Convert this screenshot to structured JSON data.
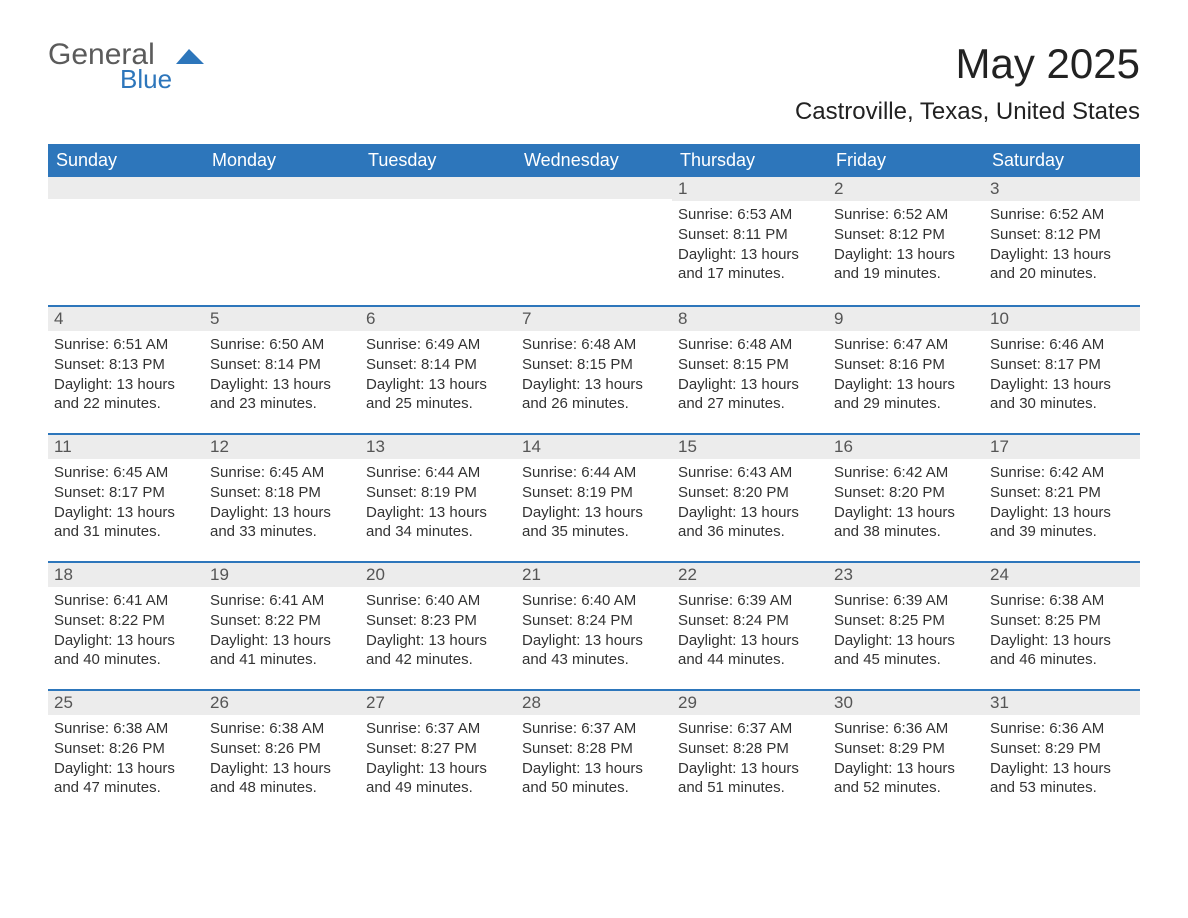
{
  "logo": {
    "general": "General",
    "blue": "Blue",
    "accent_color": "#2d76bb"
  },
  "header": {
    "title": "May 2025",
    "location": "Castroville, Texas, United States"
  },
  "colors": {
    "header_bg": "#2d76bb",
    "header_text": "#ffffff",
    "daynum_bg": "#ececec",
    "text": "#333333",
    "title_text": "#222222",
    "row_border": "#2d76bb"
  },
  "weekdays": [
    "Sunday",
    "Monday",
    "Tuesday",
    "Wednesday",
    "Thursday",
    "Friday",
    "Saturday"
  ],
  "weeks": [
    [
      {
        "n": "",
        "sunrise": "",
        "sunset": "",
        "daylight": ""
      },
      {
        "n": "",
        "sunrise": "",
        "sunset": "",
        "daylight": ""
      },
      {
        "n": "",
        "sunrise": "",
        "sunset": "",
        "daylight": ""
      },
      {
        "n": "",
        "sunrise": "",
        "sunset": "",
        "daylight": ""
      },
      {
        "n": "1",
        "sunrise": "Sunrise: 6:53 AM",
        "sunset": "Sunset: 8:11 PM",
        "daylight": "Daylight: 13 hours and 17 minutes."
      },
      {
        "n": "2",
        "sunrise": "Sunrise: 6:52 AM",
        "sunset": "Sunset: 8:12 PM",
        "daylight": "Daylight: 13 hours and 19 minutes."
      },
      {
        "n": "3",
        "sunrise": "Sunrise: 6:52 AM",
        "sunset": "Sunset: 8:12 PM",
        "daylight": "Daylight: 13 hours and 20 minutes."
      }
    ],
    [
      {
        "n": "4",
        "sunrise": "Sunrise: 6:51 AM",
        "sunset": "Sunset: 8:13 PM",
        "daylight": "Daylight: 13 hours and 22 minutes."
      },
      {
        "n": "5",
        "sunrise": "Sunrise: 6:50 AM",
        "sunset": "Sunset: 8:14 PM",
        "daylight": "Daylight: 13 hours and 23 minutes."
      },
      {
        "n": "6",
        "sunrise": "Sunrise: 6:49 AM",
        "sunset": "Sunset: 8:14 PM",
        "daylight": "Daylight: 13 hours and 25 minutes."
      },
      {
        "n": "7",
        "sunrise": "Sunrise: 6:48 AM",
        "sunset": "Sunset: 8:15 PM",
        "daylight": "Daylight: 13 hours and 26 minutes."
      },
      {
        "n": "8",
        "sunrise": "Sunrise: 6:48 AM",
        "sunset": "Sunset: 8:15 PM",
        "daylight": "Daylight: 13 hours and 27 minutes."
      },
      {
        "n": "9",
        "sunrise": "Sunrise: 6:47 AM",
        "sunset": "Sunset: 8:16 PM",
        "daylight": "Daylight: 13 hours and 29 minutes."
      },
      {
        "n": "10",
        "sunrise": "Sunrise: 6:46 AM",
        "sunset": "Sunset: 8:17 PM",
        "daylight": "Daylight: 13 hours and 30 minutes."
      }
    ],
    [
      {
        "n": "11",
        "sunrise": "Sunrise: 6:45 AM",
        "sunset": "Sunset: 8:17 PM",
        "daylight": "Daylight: 13 hours and 31 minutes."
      },
      {
        "n": "12",
        "sunrise": "Sunrise: 6:45 AM",
        "sunset": "Sunset: 8:18 PM",
        "daylight": "Daylight: 13 hours and 33 minutes."
      },
      {
        "n": "13",
        "sunrise": "Sunrise: 6:44 AM",
        "sunset": "Sunset: 8:19 PM",
        "daylight": "Daylight: 13 hours and 34 minutes."
      },
      {
        "n": "14",
        "sunrise": "Sunrise: 6:44 AM",
        "sunset": "Sunset: 8:19 PM",
        "daylight": "Daylight: 13 hours and 35 minutes."
      },
      {
        "n": "15",
        "sunrise": "Sunrise: 6:43 AM",
        "sunset": "Sunset: 8:20 PM",
        "daylight": "Daylight: 13 hours and 36 minutes."
      },
      {
        "n": "16",
        "sunrise": "Sunrise: 6:42 AM",
        "sunset": "Sunset: 8:20 PM",
        "daylight": "Daylight: 13 hours and 38 minutes."
      },
      {
        "n": "17",
        "sunrise": "Sunrise: 6:42 AM",
        "sunset": "Sunset: 8:21 PM",
        "daylight": "Daylight: 13 hours and 39 minutes."
      }
    ],
    [
      {
        "n": "18",
        "sunrise": "Sunrise: 6:41 AM",
        "sunset": "Sunset: 8:22 PM",
        "daylight": "Daylight: 13 hours and 40 minutes."
      },
      {
        "n": "19",
        "sunrise": "Sunrise: 6:41 AM",
        "sunset": "Sunset: 8:22 PM",
        "daylight": "Daylight: 13 hours and 41 minutes."
      },
      {
        "n": "20",
        "sunrise": "Sunrise: 6:40 AM",
        "sunset": "Sunset: 8:23 PM",
        "daylight": "Daylight: 13 hours and 42 minutes."
      },
      {
        "n": "21",
        "sunrise": "Sunrise: 6:40 AM",
        "sunset": "Sunset: 8:24 PM",
        "daylight": "Daylight: 13 hours and 43 minutes."
      },
      {
        "n": "22",
        "sunrise": "Sunrise: 6:39 AM",
        "sunset": "Sunset: 8:24 PM",
        "daylight": "Daylight: 13 hours and 44 minutes."
      },
      {
        "n": "23",
        "sunrise": "Sunrise: 6:39 AM",
        "sunset": "Sunset: 8:25 PM",
        "daylight": "Daylight: 13 hours and 45 minutes."
      },
      {
        "n": "24",
        "sunrise": "Sunrise: 6:38 AM",
        "sunset": "Sunset: 8:25 PM",
        "daylight": "Daylight: 13 hours and 46 minutes."
      }
    ],
    [
      {
        "n": "25",
        "sunrise": "Sunrise: 6:38 AM",
        "sunset": "Sunset: 8:26 PM",
        "daylight": "Daylight: 13 hours and 47 minutes."
      },
      {
        "n": "26",
        "sunrise": "Sunrise: 6:38 AM",
        "sunset": "Sunset: 8:26 PM",
        "daylight": "Daylight: 13 hours and 48 minutes."
      },
      {
        "n": "27",
        "sunrise": "Sunrise: 6:37 AM",
        "sunset": "Sunset: 8:27 PM",
        "daylight": "Daylight: 13 hours and 49 minutes."
      },
      {
        "n": "28",
        "sunrise": "Sunrise: 6:37 AM",
        "sunset": "Sunset: 8:28 PM",
        "daylight": "Daylight: 13 hours and 50 minutes."
      },
      {
        "n": "29",
        "sunrise": "Sunrise: 6:37 AM",
        "sunset": "Sunset: 8:28 PM",
        "daylight": "Daylight: 13 hours and 51 minutes."
      },
      {
        "n": "30",
        "sunrise": "Sunrise: 6:36 AM",
        "sunset": "Sunset: 8:29 PM",
        "daylight": "Daylight: 13 hours and 52 minutes."
      },
      {
        "n": "31",
        "sunrise": "Sunrise: 6:36 AM",
        "sunset": "Sunset: 8:29 PM",
        "daylight": "Daylight: 13 hours and 53 minutes."
      }
    ]
  ]
}
